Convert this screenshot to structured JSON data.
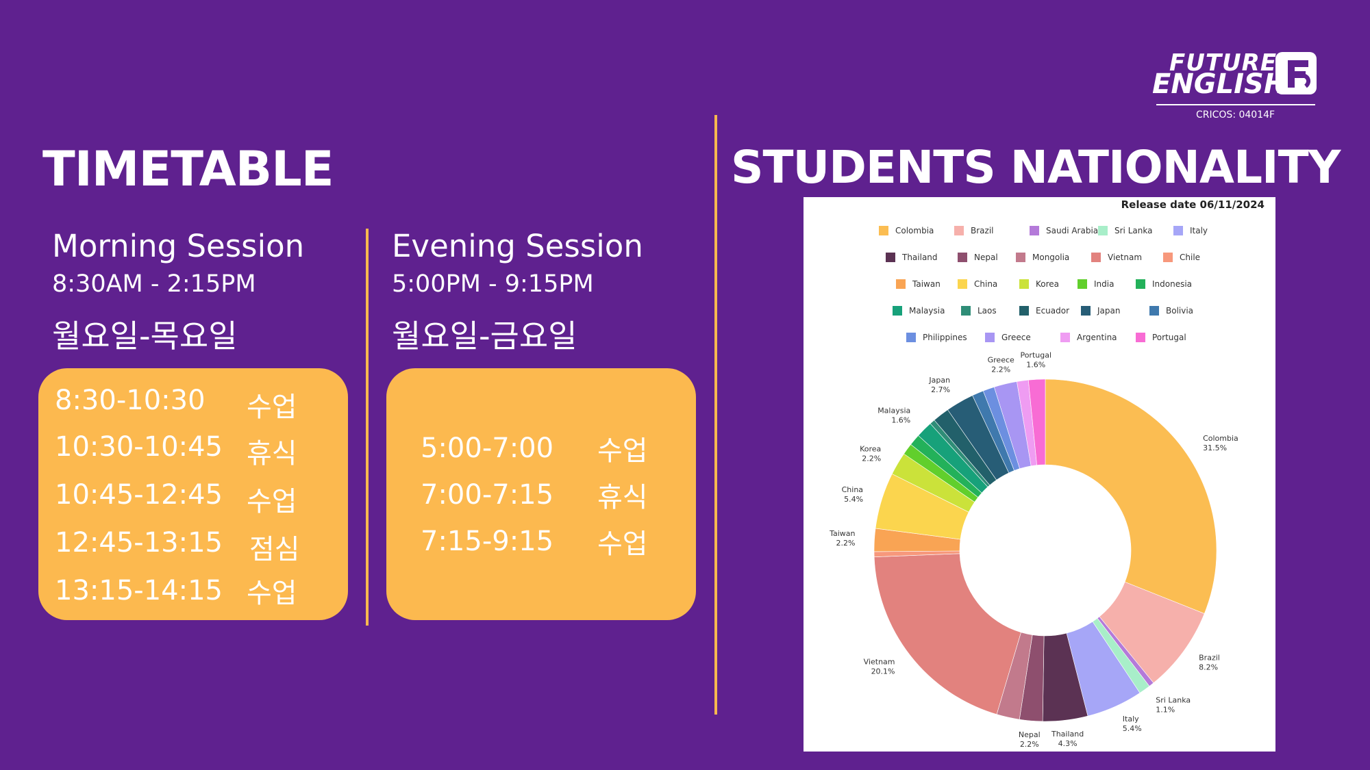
{
  "brand": {
    "line1": "FUTURE",
    "line2": "ENGLISH",
    "mark": "F",
    "cricos": "CRICOS: 04014F"
  },
  "timetable": {
    "heading": "TIMETABLE",
    "morning": {
      "title": "Morning Session",
      "time": "8:30AM - 2:15PM",
      "days": "월요일-목요일",
      "rows": [
        {
          "time": "8:30-10:30",
          "label": "수업"
        },
        {
          "time": "10:30-10:45",
          "label": "휴식"
        },
        {
          "time": "10:45-12:45",
          "label": "수업"
        },
        {
          "time": "12:45-13:15",
          "label": "점심"
        },
        {
          "time": "13:15-14:15",
          "label": "수업"
        }
      ]
    },
    "evening": {
      "title": "Evening Session",
      "time": "5:00PM - 9:15PM",
      "days": "월요일-금요일",
      "rows": [
        {
          "time": "5:00-7:00",
          "label": "수업"
        },
        {
          "time": "7:00-7:15",
          "label": "휴식"
        },
        {
          "time": "7:15-9:15",
          "label": "수업"
        }
      ]
    }
  },
  "nationality": {
    "heading": "STUDENTS NATIONALITY",
    "release": "Release date 06/11/2024"
  },
  "chart_data": {
    "type": "pie",
    "donut": true,
    "title": "",
    "slices": [
      {
        "name": "Colombia",
        "value": 31.5,
        "label": "31.5%",
        "color": "#fbbd52"
      },
      {
        "name": "Brazil",
        "value": 8.2,
        "label": "8.2%",
        "color": "#f6b0ab"
      },
      {
        "name": "Saudi Arabia",
        "value": 0.5,
        "label": "",
        "color": "#b47ad9"
      },
      {
        "name": "Sri Lanka",
        "value": 1.1,
        "label": "1.1%",
        "color": "#a8eec9"
      },
      {
        "name": "Italy",
        "value": 5.4,
        "label": "5.4%",
        "color": "#a6a6f7"
      },
      {
        "name": "Thailand",
        "value": 4.3,
        "label": "4.3%",
        "color": "#5b3253"
      },
      {
        "name": "Nepal",
        "value": 2.2,
        "label": "2.2%",
        "color": "#8e4f6e"
      },
      {
        "name": "Mongolia",
        "value": 2.2,
        "label": "",
        "color": "#c27a8c"
      },
      {
        "name": "Vietnam",
        "value": 20.1,
        "label": "20.1%",
        "color": "#e2827e"
      },
      {
        "name": "Chile",
        "value": 0.5,
        "label": "",
        "color": "#f7987c"
      },
      {
        "name": "Taiwan",
        "value": 2.2,
        "label": "2.2%",
        "color": "#f9a454"
      },
      {
        "name": "China",
        "value": 5.4,
        "label": "5.4%",
        "color": "#fbd54e"
      },
      {
        "name": "Korea",
        "value": 2.2,
        "label": "2.2%",
        "color": "#cbe23a"
      },
      {
        "name": "India",
        "value": 1.1,
        "label": "",
        "color": "#61cf2c"
      },
      {
        "name": "Indonesia",
        "value": 1.1,
        "label": "",
        "color": "#23b15a"
      },
      {
        "name": "Malaysia",
        "value": 1.6,
        "label": "1.6%",
        "color": "#17a17a"
      },
      {
        "name": "Laos",
        "value": 0.5,
        "label": "",
        "color": "#2f8d77"
      },
      {
        "name": "Ecuador",
        "value": 1.6,
        "label": "",
        "color": "#22606a"
      },
      {
        "name": "Japan",
        "value": 2.7,
        "label": "2.7%",
        "color": "#275d76"
      },
      {
        "name": "Bolivia",
        "value": 1.1,
        "label": "",
        "color": "#3f79ad"
      },
      {
        "name": "Philippines",
        "value": 1.1,
        "label": "",
        "color": "#6c8fe0"
      },
      {
        "name": "Greece",
        "value": 2.2,
        "label": "2.2%",
        "color": "#a896f3"
      },
      {
        "name": "Argentina",
        "value": 1.1,
        "label": "",
        "color": "#ef9cf2"
      },
      {
        "name": "Portugal",
        "value": 1.6,
        "label": "1.6%",
        "color": "#f86cd4"
      }
    ],
    "legend_placement": "top"
  }
}
